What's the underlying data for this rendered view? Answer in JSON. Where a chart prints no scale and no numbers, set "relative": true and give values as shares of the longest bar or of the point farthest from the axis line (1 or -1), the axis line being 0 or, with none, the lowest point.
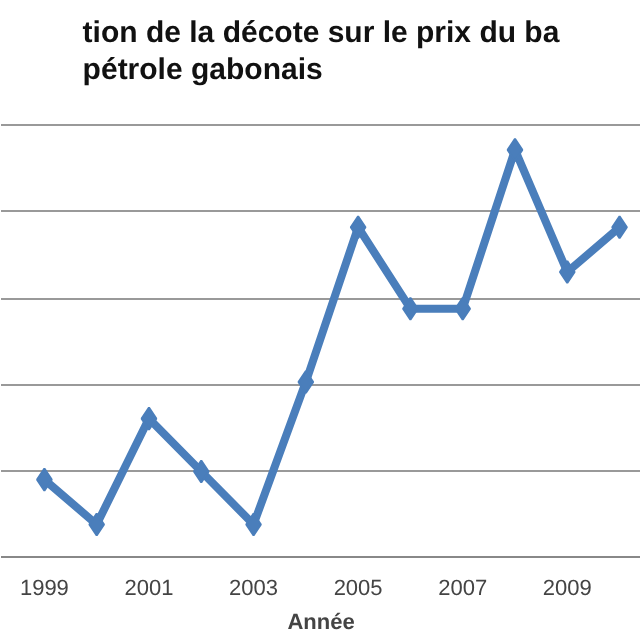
{
  "chart_data": {
    "type": "line",
    "title": "tion de la décote sur le prix du ba\npétrole gabonais",
    "xlabel": "Année",
    "relative": true,
    "x": [
      1999,
      2000,
      2001,
      2002,
      2003,
      2004,
      2005,
      2006,
      2007,
      2008,
      2009,
      2010
    ],
    "series": [
      {
        "color": "#4a7ebb",
        "values": [
          0.19,
          0.08,
          0.34,
          0.21,
          0.08,
          0.43,
          0.81,
          0.61,
          0.61,
          1.0,
          0.7,
          0.81
        ]
      }
    ],
    "xlim": [
      1998.17,
      2010.41
    ],
    "xticks": [
      1999,
      2001,
      2003,
      2005,
      2007,
      2009
    ],
    "grid": "y",
    "marker": "diamond",
    "line_style": "solid"
  }
}
